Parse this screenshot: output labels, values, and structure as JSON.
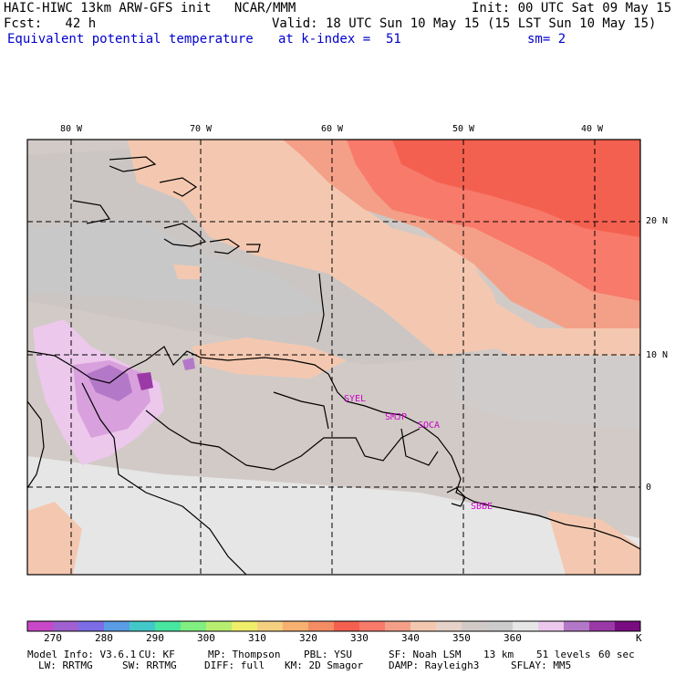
{
  "header": {
    "model_line": "HAIC-HIWC 13km ARW-GFS init   NCAR/MMM",
    "init_line": "Init: 00 UTC Sat 09 May 15",
    "fcst_line": "Fcst:   42 h",
    "valid_line": "Valid: 18 UTC Sun 10 May 15 (15 LST Sun 10 May 15)",
    "field_name": "Equivalent potential temperature",
    "level_line": "at k-index =  51",
    "smooth_line": "sm= 2"
  },
  "map": {
    "lon_labels": [
      "80 W",
      "70 W",
      "60 W",
      "50 W",
      "40 W"
    ],
    "lat_labels": [
      "20 N",
      "10 N",
      "0"
    ],
    "stations": [
      "SYEL",
      "SMJP",
      "SOCA",
      "SBBE"
    ],
    "station_color": "#cc00cc"
  },
  "colorbar": {
    "colors": [
      "#c848c8",
      "#a060d0",
      "#7c6ce6",
      "#5a9ce6",
      "#42c8c8",
      "#48e6a0",
      "#80ee80",
      "#b8ee70",
      "#eeee6a",
      "#f4d080",
      "#f6b070",
      "#f48c64",
      "#f46050",
      "#f87a6a",
      "#f4a088",
      "#f4c8b0",
      "#e6d2c8",
      "#d2cac6",
      "#cccccc",
      "#e6e6e6",
      "#ecc8ec",
      "#b478c8",
      "#9a3aa6",
      "#7a0c82"
    ],
    "labels": [
      "270",
      "280",
      "290",
      "300",
      "310",
      "320",
      "330",
      "340",
      "350",
      "360"
    ],
    "unit": "K"
  },
  "footer": {
    "line1": [
      "Model Info: V3.6.1",
      "CU: KF",
      "MP: Thompson",
      "PBL: YSU",
      "SF: Noah LSM",
      "13 km",
      "51 levels",
      "60 sec"
    ],
    "line2": [
      "LW: RRTMG",
      "SW: RRTMG",
      "DIFF: full",
      "KM: 2D Smagor",
      "DAMP: Rayleigh3",
      "SFLAY: MM5"
    ]
  }
}
